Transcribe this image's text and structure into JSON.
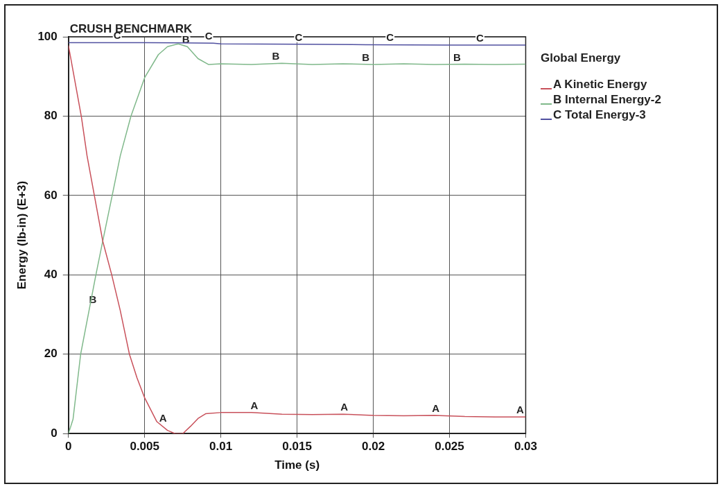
{
  "chart_data": {
    "type": "line",
    "title": "CRUSH BENCHMARK",
    "xlabel": "Time (s)",
    "ylabel": "Energy (lb-in) (E+3)",
    "legend_title": "Global Energy",
    "legend": "right",
    "grid": true,
    "marker": "none",
    "line_style": "solid",
    "xlim": [
      0,
      0.03
    ],
    "xticks": [
      0,
      0.005,
      0.01,
      0.015,
      0.02,
      0.025,
      0.03
    ],
    "ylim": [
      0,
      100
    ],
    "yticks": [
      0,
      20,
      40,
      60,
      80,
      100
    ],
    "series": [
      {
        "name": "A Kinetic Energy",
        "color": "#c8505a",
        "x": [
          0,
          0.00085,
          0.00122,
          0.0017,
          0.00225,
          0.00284,
          0.0034,
          0.004,
          0.0045,
          0.005,
          0.0058,
          0.0065,
          0.007,
          0.0075,
          0.008,
          0.0085,
          0.009,
          0.01,
          0.012,
          0.014,
          0.016,
          0.018,
          0.02,
          0.022,
          0.024,
          0.026,
          0.028,
          0.03
        ],
        "values": [
          97.8,
          79.8,
          70,
          60,
          48.5,
          40,
          31,
          20,
          14,
          9,
          3,
          0.8,
          0,
          0,
          1.8,
          3.8,
          5,
          5.3,
          5.3,
          4.9,
          4.8,
          4.9,
          4.6,
          4.5,
          4.6,
          4.3,
          4.2,
          4.2
        ]
      },
      {
        "name": "B Internal Energy-2",
        "color": "#7fb88a",
        "x": [
          0,
          0.0003,
          0.0008,
          0.0018,
          0.00225,
          0.00287,
          0.0034,
          0.0041,
          0.005,
          0.0059,
          0.0065,
          0.0072,
          0.0078,
          0.0085,
          0.0092,
          0.01,
          0.012,
          0.014,
          0.016,
          0.018,
          0.02,
          0.022,
          0.024,
          0.026,
          0.028,
          0.03
        ],
        "values": [
          0,
          3.6,
          20,
          40,
          48.5,
          60,
          70,
          80,
          89.7,
          95.5,
          97.5,
          98.2,
          97.5,
          94.5,
          93,
          93.2,
          93,
          93.3,
          93,
          93.2,
          93,
          93.2,
          93,
          93.1,
          93,
          93.1
        ]
      },
      {
        "name": "C Total Energy-3",
        "color": "#5050a0",
        "x": [
          0,
          0.005,
          0.0095,
          0.01,
          0.015,
          0.0195,
          0.025,
          0.03
        ],
        "values": [
          98.5,
          98.5,
          98.4,
          98.2,
          98.1,
          98,
          97.9,
          97.9
        ]
      }
    ],
    "annotations": [
      {
        "text": "A",
        "x": 0.0062,
        "y": 2
      },
      {
        "text": "A",
        "x": 0.0122,
        "y": 5.3
      },
      {
        "text": "A",
        "x": 0.0181,
        "y": 4.9
      },
      {
        "text": "A",
        "x": 0.0241,
        "y": 4.6
      },
      {
        "text": "A",
        "x": 0.03,
        "y": 4.2
      },
      {
        "text": "B",
        "x": 0.0016,
        "y": 32
      },
      {
        "text": "B",
        "x": 0.0077,
        "y": 97.5
      },
      {
        "text": "B",
        "x": 0.0136,
        "y": 93.3
      },
      {
        "text": "B",
        "x": 0.0195,
        "y": 93
      },
      {
        "text": "B",
        "x": 0.0255,
        "y": 93
      },
      {
        "text": "C",
        "x": 0.0032,
        "y": 98.5
      },
      {
        "text": "C",
        "x": 0.0092,
        "y": 98.4
      },
      {
        "text": "C",
        "x": 0.0151,
        "y": 98.1
      },
      {
        "text": "C",
        "x": 0.0211,
        "y": 98
      },
      {
        "text": "C",
        "x": 0.027,
        "y": 97.9
      }
    ]
  }
}
